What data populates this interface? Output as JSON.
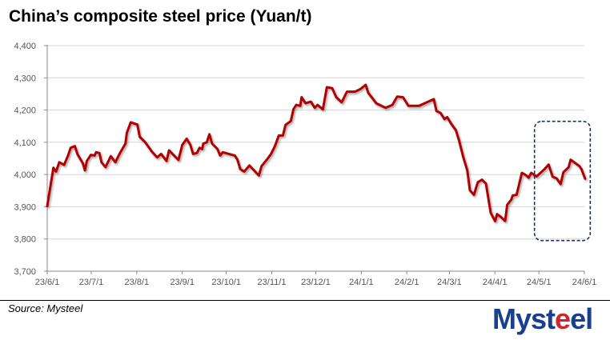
{
  "chart_data": {
    "type": "line",
    "title": "China’s composite steel price (Yuan/t)",
    "xlabel": "",
    "ylabel": "",
    "x_unit": "days since 2023-06-01",
    "ylim": [
      3700,
      4400
    ],
    "yticks": [
      3700,
      3800,
      3900,
      4000,
      4100,
      4200,
      4300,
      4400
    ],
    "ytick_labels": [
      "3,700",
      "3,800",
      "3,900",
      "4,000",
      "4,100",
      "4,200",
      "4,300",
      "4,400"
    ],
    "xticks": [
      0,
      30,
      61,
      92,
      122,
      153,
      183,
      214,
      245,
      274,
      305,
      335,
      366
    ],
    "xtick_labels": [
      "23/6/1",
      "23/7/1",
      "23/8/1",
      "23/9/1",
      "23/10/1",
      "23/11/1",
      "23/12/1",
      "24/1/1",
      "24/2/1",
      "24/3/1",
      "24/4/1",
      "24/5/1",
      "24/6/1"
    ],
    "grid": true,
    "highlight_range": {
      "x": [
        332,
        370
      ],
      "y": [
        3795,
        4165
      ]
    },
    "series": [
      {
        "name": "Composite steel price",
        "color": "#b00000",
        "points": [
          [
            0,
            3902
          ],
          [
            4.2,
            4021
          ],
          [
            6,
            4009
          ],
          [
            8.2,
            4038
          ],
          [
            11.5,
            4030
          ],
          [
            14.2,
            4059
          ],
          [
            16,
            4083
          ],
          [
            18.8,
            4088
          ],
          [
            20.6,
            4063
          ],
          [
            24.3,
            4034
          ],
          [
            25.7,
            4013
          ],
          [
            27,
            4042
          ],
          [
            29.7,
            4061
          ],
          [
            32.3,
            4059
          ],
          [
            33.3,
            4069
          ],
          [
            35.5,
            4067
          ],
          [
            37,
            4038
          ],
          [
            39.7,
            4023
          ],
          [
            43.3,
            4057
          ],
          [
            46.4,
            4038
          ],
          [
            49.6,
            4067
          ],
          [
            53.3,
            4096
          ],
          [
            54.2,
            4129
          ],
          [
            56.9,
            4162
          ],
          [
            61.4,
            4155
          ],
          [
            63,
            4117
          ],
          [
            66.8,
            4100
          ],
          [
            71.3,
            4071
          ],
          [
            74.9,
            4053
          ],
          [
            77.6,
            4064
          ],
          [
            81.3,
            4042
          ],
          [
            83,
            4075
          ],
          [
            89.4,
            4045
          ],
          [
            92,
            4092
          ],
          [
            95,
            4111
          ],
          [
            97.5,
            4092
          ],
          [
            99.4,
            4064
          ],
          [
            102,
            4067
          ],
          [
            103.8,
            4083
          ],
          [
            105.6,
            4079
          ],
          [
            106.3,
            4096
          ],
          [
            108.7,
            4100
          ],
          [
            110.5,
            4125
          ],
          [
            112.3,
            4096
          ],
          [
            116,
            4079
          ],
          [
            117.8,
            4059
          ],
          [
            119.6,
            4069
          ],
          [
            127.8,
            4059
          ],
          [
            129.6,
            4046
          ],
          [
            131.5,
            4017
          ],
          [
            134.2,
            4009
          ],
          [
            137.8,
            4028
          ],
          [
            144.2,
            3997
          ],
          [
            146,
            4026
          ],
          [
            149.6,
            4046
          ],
          [
            152.4,
            4063
          ],
          [
            155.1,
            4088
          ],
          [
            157.8,
            4121
          ],
          [
            160.6,
            4121
          ],
          [
            162.4,
            4154
          ],
          [
            166,
            4166
          ],
          [
            167.8,
            4203
          ],
          [
            169.7,
            4216
          ],
          [
            172.4,
            4213
          ],
          [
            173.3,
            4240
          ],
          [
            176,
            4221
          ],
          [
            179.6,
            4226
          ],
          [
            182.3,
            4207
          ],
          [
            184.2,
            4216
          ],
          [
            187.8,
            4202
          ],
          [
            190.5,
            4271
          ],
          [
            194.2,
            4268
          ],
          [
            196.9,
            4240
          ],
          [
            200.6,
            4224
          ],
          [
            204.2,
            4257
          ],
          [
            209.7,
            4257
          ],
          [
            213.3,
            4265
          ],
          [
            217,
            4278
          ],
          [
            218.8,
            4253
          ],
          [
            222.4,
            4232
          ],
          [
            224.2,
            4221
          ],
          [
            230.6,
            4207
          ],
          [
            235.2,
            4216
          ],
          [
            238.4,
            4242
          ],
          [
            242.4,
            4240
          ],
          [
            246.1,
            4213
          ],
          [
            253.4,
            4213
          ],
          [
            263.4,
            4234
          ],
          [
            265.2,
            4197
          ],
          [
            268,
            4191
          ],
          [
            270.7,
            4172
          ],
          [
            272.5,
            4178
          ],
          [
            275.2,
            4158
          ],
          [
            278.5,
            4137
          ],
          [
            280.7,
            4104
          ],
          [
            283.4,
            4055
          ],
          [
            286.2,
            4013
          ],
          [
            288,
            3951
          ],
          [
            290.7,
            3937
          ],
          [
            293.4,
            3976
          ],
          [
            296.2,
            3984
          ],
          [
            298.9,
            3972
          ],
          [
            302.2,
            3881
          ],
          [
            305.2,
            3855
          ],
          [
            306.5,
            3877
          ],
          [
            308.9,
            3869
          ],
          [
            312,
            3856
          ],
          [
            313.4,
            3906
          ],
          [
            316.2,
            3922
          ],
          [
            317.1,
            3935
          ],
          [
            319.8,
            3937
          ],
          [
            323.4,
            4005
          ],
          [
            326.2,
            3998
          ],
          [
            328,
            3990
          ],
          [
            329.8,
            4005
          ],
          [
            333.4,
            3994
          ],
          [
            338.9,
            4017
          ],
          [
            341.6,
            4031
          ],
          [
            344.4,
            3993
          ],
          [
            347.1,
            3988
          ],
          [
            349.8,
            3970
          ],
          [
            351.7,
            4007
          ],
          [
            355.3,
            4023
          ],
          [
            356.6,
            4046
          ],
          [
            362.6,
            4026
          ],
          [
            364,
            4017
          ],
          [
            366.5,
            3987
          ]
        ]
      }
    ]
  },
  "footer": {
    "source": "Source: Mysteel",
    "logo_text": "Mysteel"
  }
}
